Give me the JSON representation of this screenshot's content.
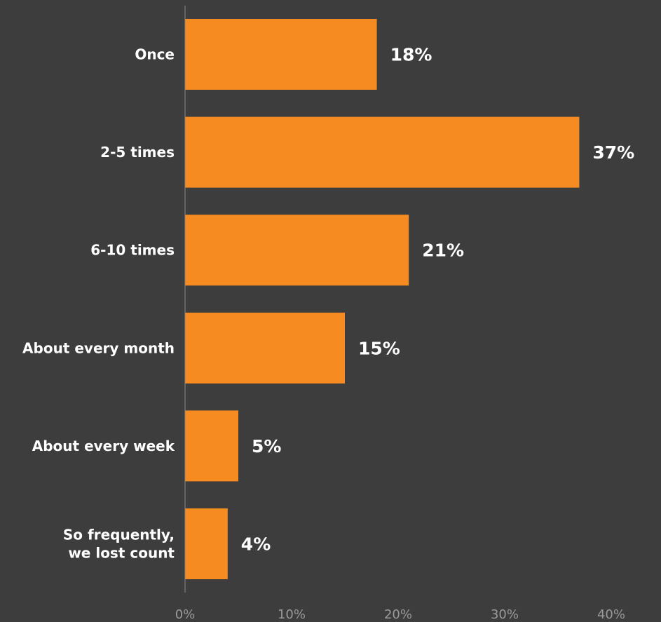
{
  "chart_data": {
    "type": "bar",
    "orientation": "horizontal",
    "categories": [
      [
        "Once"
      ],
      [
        "2-5 times"
      ],
      [
        "6-10 times"
      ],
      [
        "About every month"
      ],
      [
        "About every week"
      ],
      [
        "So frequently,",
        "we lost count"
      ]
    ],
    "values": [
      18,
      37,
      21,
      15,
      5,
      4
    ],
    "value_labels": [
      "18%",
      "37%",
      "21%",
      "15%",
      "5%",
      "4%"
    ],
    "xticks": [
      0,
      10,
      20,
      30,
      40
    ],
    "xtick_labels": [
      "0%",
      "10%",
      "20%",
      "30%",
      "40%"
    ],
    "xlim": [
      0,
      40
    ],
    "title": "",
    "xlabel": "",
    "ylabel": "",
    "grid": false,
    "colors": {
      "background": "#3d3d3d",
      "bar": "#f68b22",
      "label": "#ffffff",
      "tick": "#9a9a9a",
      "axis": "#8a8a8a"
    }
  }
}
